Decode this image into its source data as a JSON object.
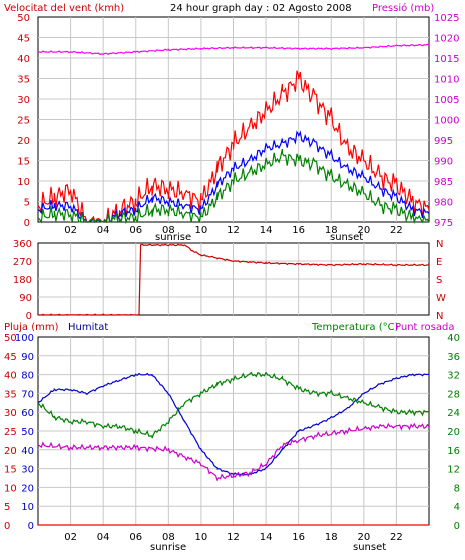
{
  "chart_data": [
    {
      "type": "line",
      "title": "24 hour graph day : 02 Agosto 2008",
      "left_axis_label": "Velocitat del vent (kmh)",
      "right_axis_label": "Pressió (mb)",
      "xlim": [
        0,
        24
      ],
      "x_ticks": [
        "02",
        "04",
        "06",
        "08",
        "10",
        "12",
        "14",
        "16",
        "18",
        "20",
        "22"
      ],
      "x_markers": [
        "sunrise",
        "sunset"
      ],
      "left_ylim": [
        0,
        50
      ],
      "left_ticks": [
        "0",
        "5",
        "10",
        "15",
        "20",
        "25",
        "30",
        "35",
        "40",
        "45",
        "50"
      ],
      "right_ylim": [
        975,
        1025
      ],
      "right_ticks": [
        "975",
        "980",
        "985",
        "990",
        "995",
        "1000",
        "1005",
        "1010",
        "1015",
        "1020",
        "1025"
      ],
      "grid": true,
      "series": [
        {
          "color": "#ff0000",
          "axis": "left",
          "points": [
            [
              0,
              4
            ],
            [
              1,
              6
            ],
            [
              2,
              8
            ],
            [
              3,
              0
            ],
            [
              4,
              0
            ],
            [
              5,
              3
            ],
            [
              6,
              5
            ],
            [
              7,
              9
            ],
            [
              8,
              8
            ],
            [
              9,
              7
            ],
            [
              10,
              5
            ],
            [
              11,
              13
            ],
            [
              12,
              19
            ],
            [
              13,
              23
            ],
            [
              14,
              27
            ],
            [
              15,
              31
            ],
            [
              16,
              35
            ],
            [
              17,
              30
            ],
            [
              18,
              25
            ],
            [
              19,
              18
            ],
            [
              20,
              15
            ],
            [
              21,
              11
            ],
            [
              22,
              9
            ],
            [
              23,
              5
            ],
            [
              24,
              3
            ]
          ]
        },
        {
          "color": "#0000ff",
          "axis": "left",
          "points": [
            [
              0,
              3
            ],
            [
              1,
              4
            ],
            [
              2,
              4
            ],
            [
              3,
              0
            ],
            [
              4,
              0
            ],
            [
              5,
              2
            ],
            [
              6,
              3
            ],
            [
              7,
              6
            ],
            [
              8,
              5
            ],
            [
              9,
              4
            ],
            [
              10,
              3
            ],
            [
              11,
              9
            ],
            [
              12,
              13
            ],
            [
              13,
              15
            ],
            [
              14,
              18
            ],
            [
              15,
              19
            ],
            [
              16,
              21
            ],
            [
              17,
              19
            ],
            [
              18,
              16
            ],
            [
              19,
              13
            ],
            [
              20,
              11
            ],
            [
              21,
              8
            ],
            [
              22,
              6
            ],
            [
              23,
              3
            ],
            [
              24,
              2
            ]
          ]
        },
        {
          "color": "#008000",
          "axis": "left",
          "points": [
            [
              0,
              1
            ],
            [
              1,
              2
            ],
            [
              2,
              2
            ],
            [
              3,
              0
            ],
            [
              4,
              0
            ],
            [
              5,
              1
            ],
            [
              6,
              1
            ],
            [
              7,
              3
            ],
            [
              8,
              3
            ],
            [
              9,
              2
            ],
            [
              10,
              1
            ],
            [
              11,
              6
            ],
            [
              12,
              10
            ],
            [
              13,
              12
            ],
            [
              14,
              14
            ],
            [
              15,
              16
            ],
            [
              16,
              15
            ],
            [
              17,
              14
            ],
            [
              18,
              11
            ],
            [
              19,
              9
            ],
            [
              20,
              7
            ],
            [
              21,
              4
            ],
            [
              22,
              3
            ],
            [
              23,
              1
            ],
            [
              24,
              0
            ]
          ]
        },
        {
          "color": "#ff00ff",
          "axis": "right",
          "points": [
            [
              0,
              1016.5
            ],
            [
              2,
              1016.5
            ],
            [
              4,
              1016.0
            ],
            [
              6,
              1016.5
            ],
            [
              8,
              1017.0
            ],
            [
              10,
              1017.3
            ],
            [
              12,
              1017.5
            ],
            [
              14,
              1017.5
            ],
            [
              16,
              1017.3
            ],
            [
              18,
              1017.3
            ],
            [
              20,
              1017.5
            ],
            [
              22,
              1018.0
            ],
            [
              24,
              1018.2
            ]
          ]
        }
      ]
    },
    {
      "type": "line",
      "ylim": [
        0,
        360
      ],
      "left_ticks": [
        "0",
        "90",
        "180",
        "270",
        "360"
      ],
      "right_ticks": [
        "N",
        "W",
        "S",
        "E",
        "N"
      ],
      "xlim": [
        0,
        24
      ],
      "grid": true,
      "series": [
        {
          "color": "#cc0000",
          "points": [
            [
              0,
              0
            ],
            [
              6.2,
              0
            ],
            [
              6.3,
              350
            ],
            [
              9,
              350
            ],
            [
              9.5,
              320
            ],
            [
              10,
              300
            ],
            [
              11,
              285
            ],
            [
              12,
              270
            ],
            [
              13,
              265
            ],
            [
              14,
              260
            ],
            [
              16,
              255
            ],
            [
              18,
              250
            ],
            [
              20,
              255
            ],
            [
              22,
              250
            ],
            [
              24,
              250
            ]
          ]
        }
      ]
    },
    {
      "type": "line",
      "left_axis_label_1": "Pluja (mm)",
      "left_axis_label_2": "Humitat",
      "right_axis_label_1": "Temperatura (°C)",
      "right_axis_label_2": "Punt rosada",
      "xlim": [
        0,
        24
      ],
      "x_ticks": [
        "02",
        "04",
        "06",
        "08",
        "10",
        "12",
        "14",
        "16",
        "18",
        "20",
        "22"
      ],
      "x_markers": [
        "sunrise",
        "sunset"
      ],
      "rain_ticks": [
        "0",
        "5",
        "10",
        "15",
        "20",
        "25",
        "30",
        "35",
        "40",
        "45",
        "50"
      ],
      "humidity_ticks": [
        "0",
        "10",
        "20",
        "30",
        "40",
        "50",
        "60",
        "70",
        "80",
        "90",
        "100"
      ],
      "rain_ylim": [
        0,
        50
      ],
      "humidity_ylim": [
        0,
        100
      ],
      "temp_ylim": [
        0,
        40
      ],
      "temp_ticks": [
        "0",
        "4",
        "8",
        "12",
        "16",
        "20",
        "24",
        "28",
        "32",
        "36",
        "40"
      ],
      "grid": true,
      "series": [
        {
          "color": "#0000cc",
          "axis": "humidity",
          "points": [
            [
              0,
              65
            ],
            [
              1,
              72
            ],
            [
              2,
              72
            ],
            [
              3,
              70
            ],
            [
              4,
              74
            ],
            [
              5,
              77
            ],
            [
              6,
              80
            ],
            [
              7,
              80
            ],
            [
              8,
              70
            ],
            [
              9,
              55
            ],
            [
              10,
              40
            ],
            [
              11,
              30
            ],
            [
              12,
              27
            ],
            [
              13,
              27
            ],
            [
              14,
              30
            ],
            [
              15,
              40
            ],
            [
              16,
              50
            ],
            [
              17,
              53
            ],
            [
              18,
              57
            ],
            [
              19,
              62
            ],
            [
              20,
              70
            ],
            [
              21,
              75
            ],
            [
              22,
              78
            ],
            [
              23,
              80
            ],
            [
              24,
              80
            ]
          ]
        },
        {
          "color": "#008000",
          "axis": "temp",
          "points": [
            [
              0,
              26
            ],
            [
              1,
              23
            ],
            [
              2,
              22
            ],
            [
              3,
              22
            ],
            [
              4,
              21
            ],
            [
              5,
              21
            ],
            [
              6,
              20
            ],
            [
              7,
              19
            ],
            [
              8,
              22
            ],
            [
              9,
              26
            ],
            [
              10,
              28
            ],
            [
              11,
              30
            ],
            [
              12,
              31
            ],
            [
              13,
              32
            ],
            [
              14,
              32
            ],
            [
              15,
              31
            ],
            [
              16,
              29
            ],
            [
              17,
              28
            ],
            [
              18,
              28
            ],
            [
              19,
              27
            ],
            [
              20,
              26
            ],
            [
              21,
              25
            ],
            [
              22,
              24
            ],
            [
              23,
              24
            ],
            [
              24,
              24
            ]
          ]
        },
        {
          "color": "#cc00cc",
          "axis": "temp",
          "points": [
            [
              0,
              17
            ],
            [
              2,
              16.5
            ],
            [
              4,
              16.5
            ],
            [
              6,
              16.5
            ],
            [
              8,
              16
            ],
            [
              9,
              14.5
            ],
            [
              10,
              13
            ],
            [
              11,
              10
            ],
            [
              12,
              10.5
            ],
            [
              13,
              11
            ],
            [
              14,
              13
            ],
            [
              15,
              17
            ],
            [
              16,
              18
            ],
            [
              17,
              19
            ],
            [
              18,
              19.5
            ],
            [
              19,
              20
            ],
            [
              20,
              20.5
            ],
            [
              21,
              21
            ],
            [
              22,
              21
            ],
            [
              23,
              21
            ],
            [
              24,
              21
            ]
          ]
        },
        {
          "color": "#ff0000",
          "axis": "rain",
          "points": [
            [
              0,
              0
            ],
            [
              24,
              0
            ]
          ]
        }
      ]
    }
  ]
}
